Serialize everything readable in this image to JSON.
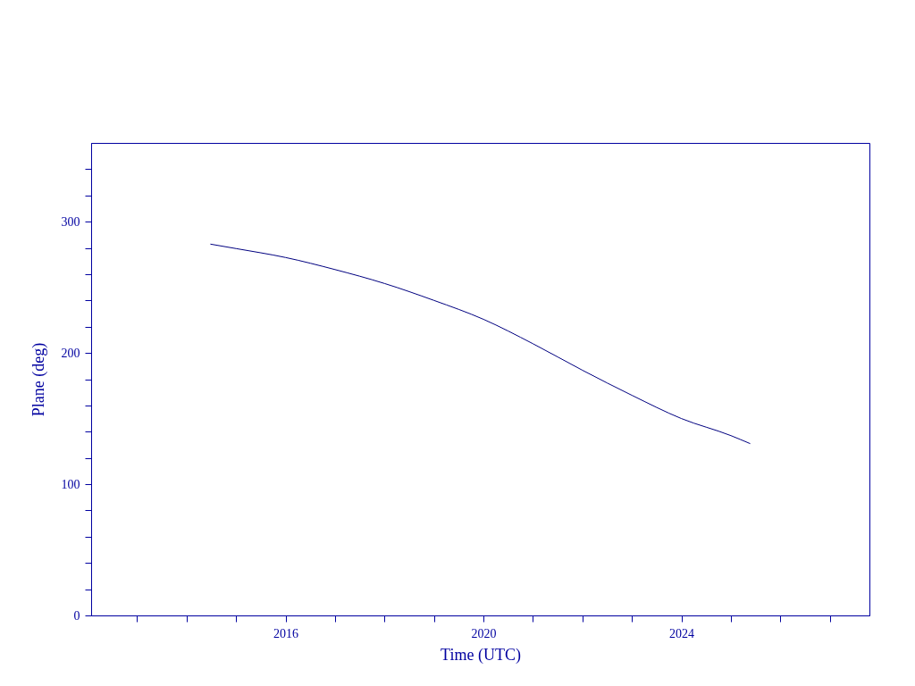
{
  "chart_data": {
    "type": "line",
    "xlabel": "Time (UTC)",
    "ylabel": "Plane (deg)",
    "x": [
      2014.48,
      2015,
      2016,
      2017,
      2018,
      2019,
      2020,
      2021,
      2022,
      2023,
      2024,
      2025,
      2025.39
    ],
    "series": [
      {
        "color": "#000080",
        "values": [
          282.9,
          279.5,
          272.7,
          263.5,
          252.9,
          240,
          225.6,
          207,
          186.8,
          167.7,
          150,
          137,
          130.9
        ]
      }
    ],
    "xlim": [
      2012.07,
      2027.8
    ],
    "xticks": [
      {
        "value": 2013,
        "label": null
      },
      {
        "value": 2014,
        "label": null
      },
      {
        "value": 2015,
        "label": null
      },
      2016,
      {
        "value": 2017,
        "label": null
      },
      {
        "value": 2018,
        "label": null
      },
      {
        "value": 2019,
        "label": null
      },
      2020,
      {
        "value": 2021,
        "label": null
      },
      {
        "value": 2022,
        "label": null
      },
      {
        "value": 2023,
        "label": null
      },
      2024,
      {
        "value": 2025,
        "label": null
      },
      {
        "value": 2026,
        "label": null
      },
      {
        "value": 2027,
        "label": null
      }
    ],
    "ylim": [
      0,
      360
    ],
    "yticks": [
      0,
      {
        "value": 20,
        "label": null
      },
      {
        "value": 40,
        "label": null
      },
      {
        "value": 60,
        "label": null
      },
      {
        "value": 80,
        "label": null
      },
      100,
      {
        "value": 120,
        "label": null
      },
      {
        "value": 140,
        "label": null
      },
      {
        "value": 160,
        "label": null
      },
      {
        "value": 180,
        "label": null
      },
      200,
      {
        "value": 220,
        "label": null
      },
      {
        "value": 240,
        "label": null
      },
      {
        "value": 260,
        "label": null
      },
      {
        "value": 280,
        "label": null
      },
      300,
      {
        "value": 320,
        "label": null
      },
      {
        "value": 340,
        "label": null
      }
    ],
    "grid": false,
    "marker": "none",
    "line_style": "solid"
  }
}
